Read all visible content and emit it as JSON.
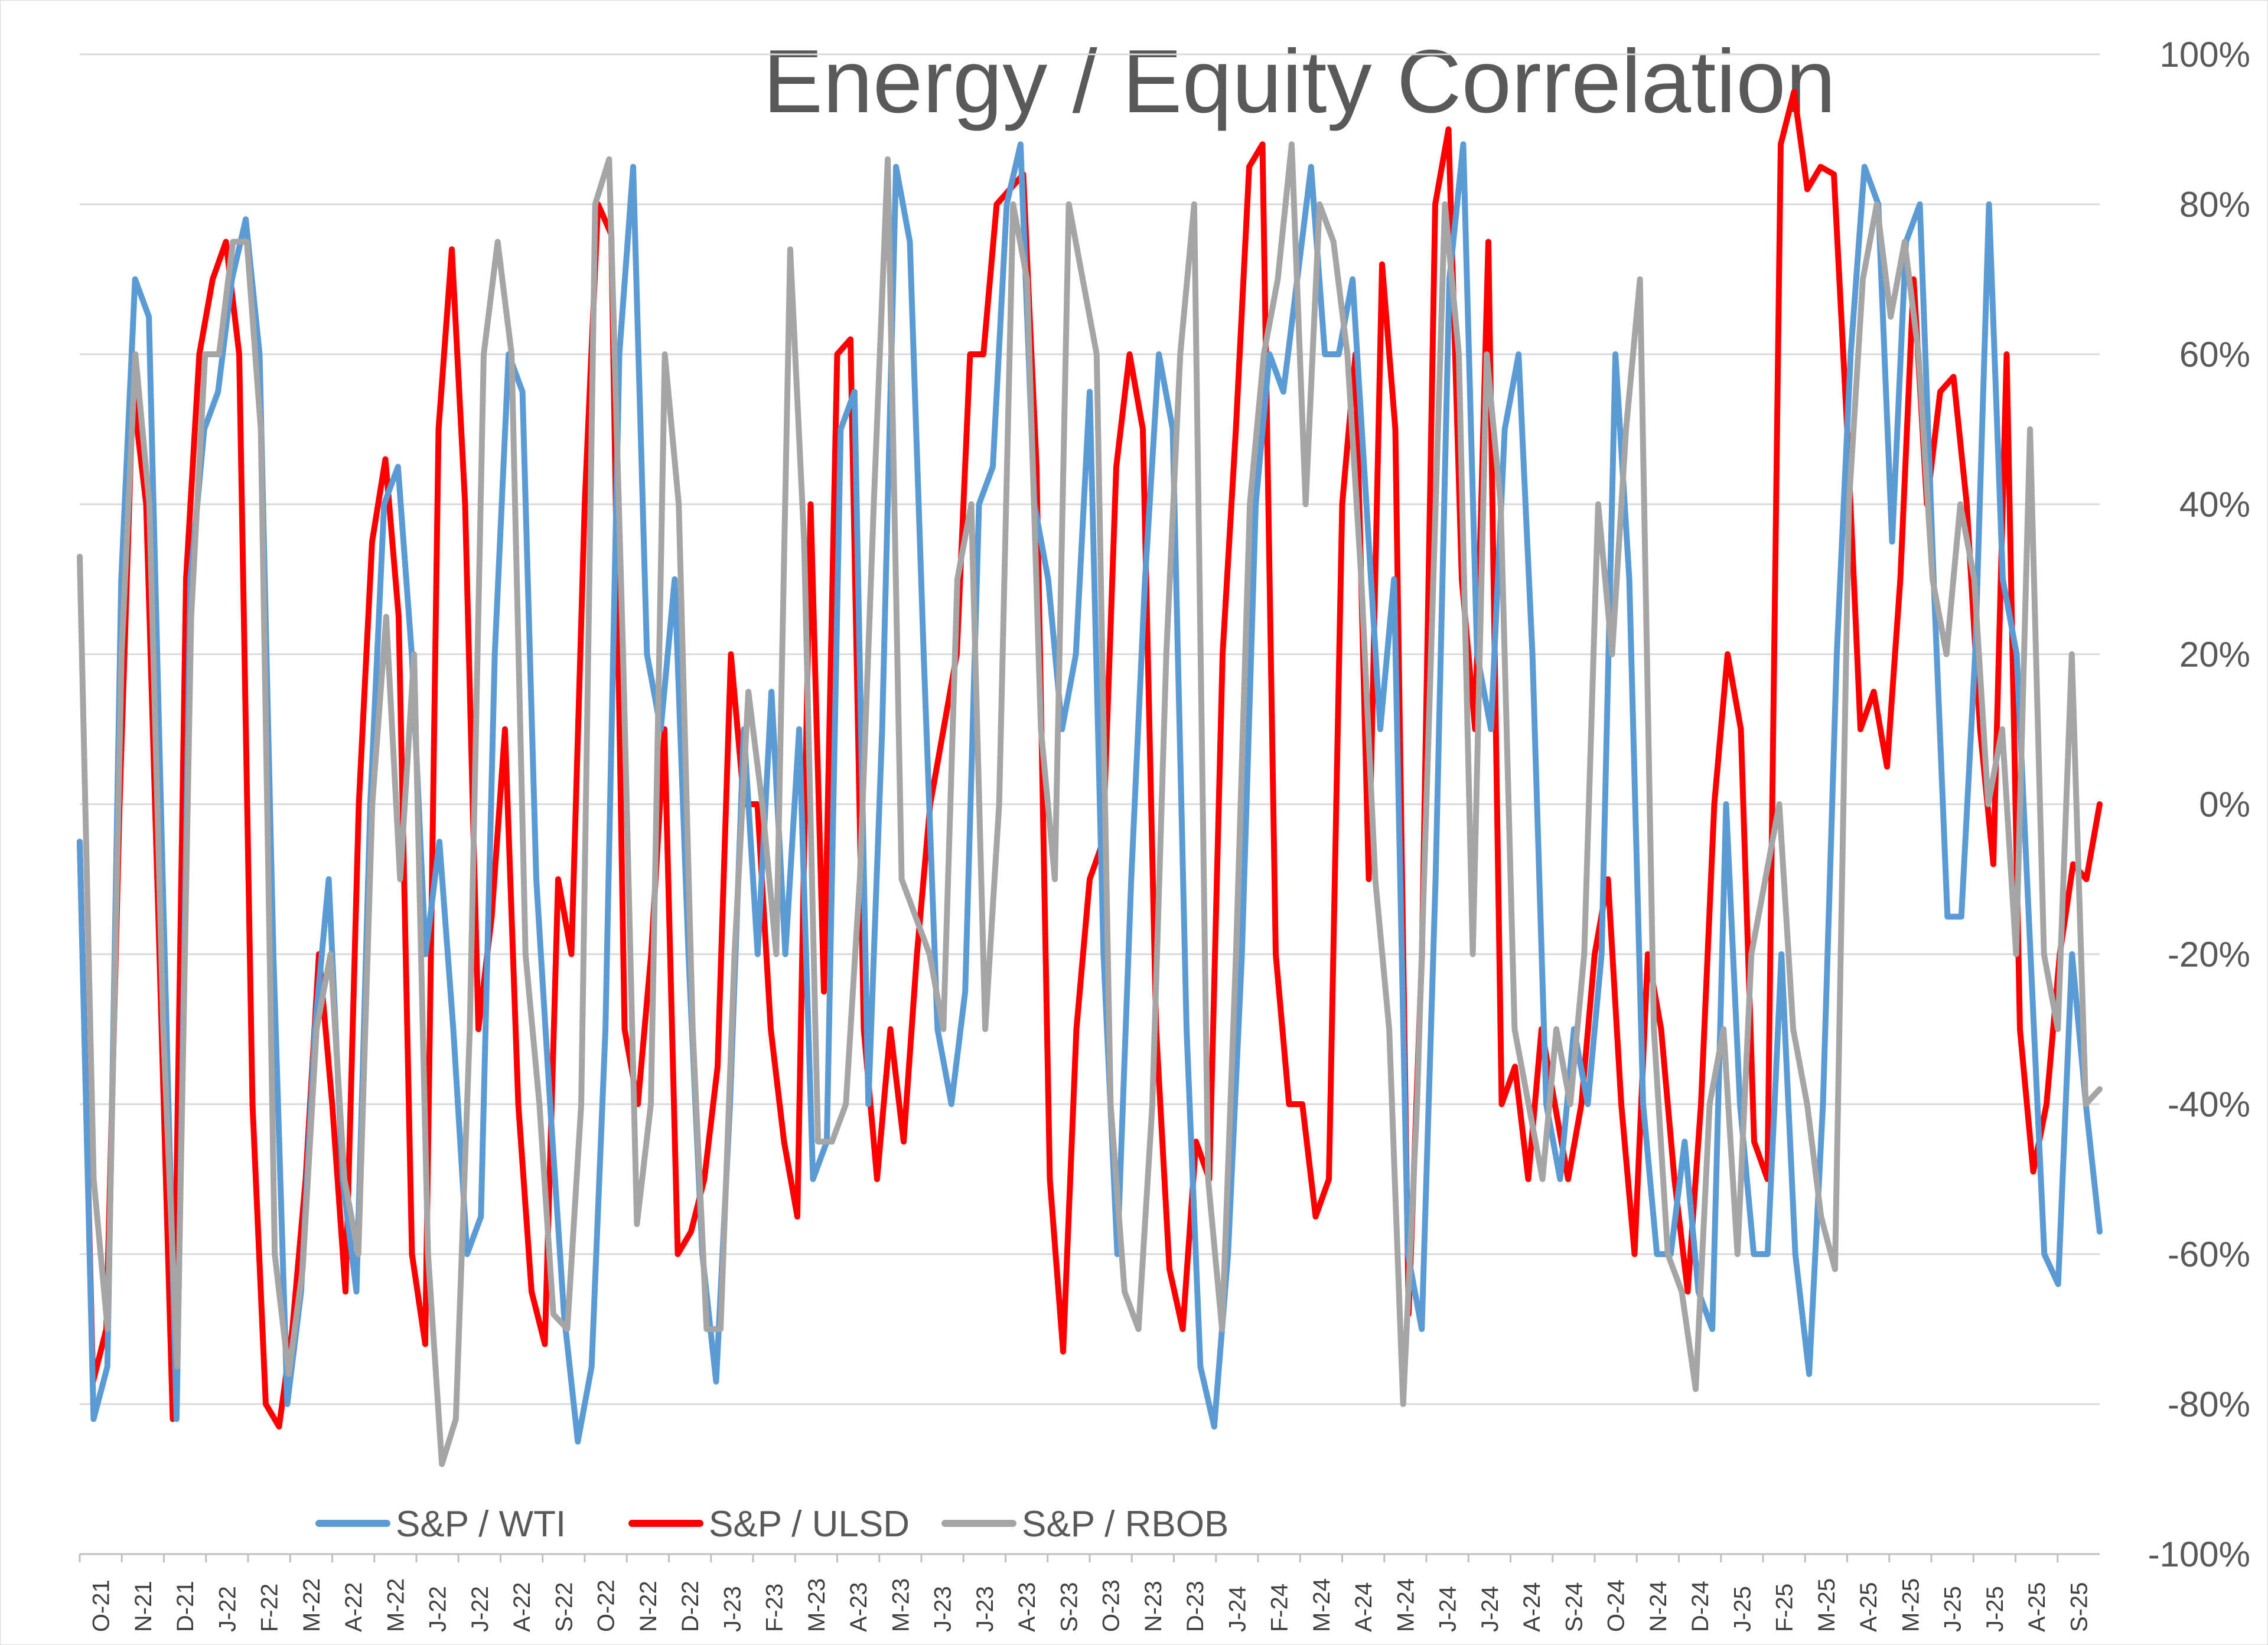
{
  "chart_data": {
    "type": "line",
    "title": "Energy / Equity Correlation",
    "xlabel": "",
    "ylabel": "",
    "ylim": [
      -100,
      100
    ],
    "y_ticks": [
      "100%",
      "80%",
      "60%",
      "40%",
      "20%",
      "0%",
      "-20%",
      "-40%",
      "-60%",
      "-80%",
      "-100%"
    ],
    "y_tick_values": [
      100,
      80,
      60,
      40,
      20,
      0,
      -20,
      -40,
      -60,
      -80,
      -100
    ],
    "y_axis_side": "right",
    "grid": true,
    "legend_position": "bottom-left",
    "x_ticks": [
      "O-21",
      "N-21",
      "D-21",
      "J-22",
      "F-22",
      "M-22",
      "A-22",
      "M-22",
      "J-22",
      "J-22",
      "A-22",
      "S-22",
      "O-22",
      "N-22",
      "D-22",
      "J-23",
      "F-23",
      "M-23",
      "A-23",
      "M-23",
      "J-23",
      "J-23",
      "A-23",
      "S-23",
      "O-23",
      "N-23",
      "D-23",
      "J-24",
      "F-24",
      "M-24",
      "A-24",
      "M-24",
      "J-24",
      "J-24",
      "A-24",
      "S-24",
      "O-24",
      "N-24",
      "D-24",
      "J-25",
      "F-25",
      "M-25",
      "A-25",
      "M-25",
      "J-25",
      "J-25",
      "A-25",
      "S-25"
    ],
    "series": [
      {
        "name": "S&P / WTI",
        "color": "#5b9bd5",
        "values": [
          -5,
          -82,
          -75,
          30,
          70,
          65,
          -10,
          -82,
          30,
          50,
          55,
          70,
          78,
          60,
          -20,
          -80,
          -65,
          -30,
          -10,
          -50,
          -65,
          0,
          40,
          45,
          20,
          -20,
          -5,
          -30,
          -60,
          -55,
          20,
          60,
          55,
          -10,
          -40,
          -68,
          -85,
          -75,
          -30,
          60,
          85,
          20,
          10,
          30,
          -20,
          -60,
          -77,
          -40,
          10,
          -20,
          15,
          -20,
          10,
          -50,
          -45,
          50,
          55,
          -40,
          10,
          85,
          75,
          20,
          -30,
          -40,
          -25,
          40,
          45,
          80,
          88,
          40,
          30,
          10,
          20,
          55,
          -20,
          -60,
          -10,
          30,
          60,
          50,
          -30,
          -75,
          -83,
          -60,
          -20,
          40,
          60,
          55,
          70,
          85,
          60,
          60,
          70,
          40,
          10,
          30,
          -60,
          -70,
          -10,
          70,
          88,
          20,
          10,
          50,
          60,
          20,
          -40,
          -50,
          -30,
          -40,
          -20,
          60,
          30,
          -40,
          -60,
          -60,
          -45,
          -65,
          -70,
          0,
          -40,
          -60,
          -60,
          -20,
          -60,
          -76,
          -40,
          20,
          60,
          85,
          80,
          35,
          75,
          80,
          30,
          -15,
          -15,
          20,
          80,
          30,
          20,
          -20,
          -60,
          -64,
          -20,
          -40,
          -57
        ]
      },
      {
        "name": "S&P / ULSD",
        "color": "#ff0000",
        "values": [
          -5,
          -77,
          -70,
          0,
          55,
          40,
          -20,
          -82,
          30,
          60,
          70,
          75,
          60,
          -40,
          -80,
          -83,
          -70,
          -50,
          -20,
          -40,
          -65,
          0,
          35,
          46,
          25,
          -60,
          -72,
          50,
          74,
          40,
          -30,
          -15,
          10,
          -40,
          -65,
          -72,
          -10,
          -20,
          40,
          80,
          76,
          -30,
          -40,
          -20,
          10,
          -60,
          -57,
          -50,
          -35,
          20,
          0,
          0,
          -30,
          -45,
          -55,
          40,
          -25,
          60,
          62,
          -30,
          -50,
          -30,
          -45,
          -20,
          0,
          10,
          20,
          60,
          60,
          80,
          82,
          84,
          45,
          -50,
          -73,
          -30,
          -10,
          -5,
          45,
          60,
          50,
          -30,
          -62,
          -70,
          -45,
          -50,
          20,
          50,
          85,
          88,
          -20,
          -40,
          -40,
          -55,
          -50,
          40,
          60,
          -10,
          72,
          50,
          -68,
          -20,
          80,
          90,
          30,
          10,
          75,
          -40,
          -35,
          -50,
          -30,
          -40,
          -50,
          -40,
          -20,
          -10,
          -40,
          -60,
          -20,
          -30,
          -50,
          -65,
          -40,
          0,
          20,
          10,
          -45,
          -50,
          88,
          95,
          82,
          85,
          84,
          50,
          10,
          15,
          5,
          30,
          70,
          40,
          55,
          57,
          40,
          10,
          -8,
          60,
          -30,
          -49,
          -40,
          -20,
          -8,
          -10,
          0
        ]
      },
      {
        "name": "S&P / RBOB",
        "color": "#a5a5a5",
        "values": [
          33,
          -50,
          -70,
          20,
          60,
          40,
          -30,
          -75,
          25,
          60,
          60,
          75,
          75,
          50,
          -60,
          -76,
          -62,
          -30,
          -20,
          -50,
          -60,
          0,
          25,
          -10,
          20,
          -60,
          -88,
          -82,
          -30,
          60,
          75,
          60,
          -20,
          -40,
          -68,
          -70,
          -40,
          80,
          86,
          20,
          -56,
          -40,
          60,
          40,
          -30,
          -70,
          -70,
          -20,
          15,
          0,
          -20,
          74,
          35,
          -45,
          -45,
          -40,
          -10,
          40,
          86,
          -10,
          -15,
          -20,
          -30,
          30,
          40,
          -30,
          0,
          80,
          70,
          10,
          -10,
          80,
          70,
          60,
          -40,
          -65,
          -70,
          -40,
          20,
          60,
          80,
          -50,
          -70,
          -20,
          40,
          60,
          70,
          88,
          40,
          80,
          75,
          60,
          30,
          -10,
          -30,
          -80,
          -40,
          20,
          80,
          60,
          -20,
          60,
          40,
          -30,
          -40,
          -50,
          -30,
          -40,
          -20,
          40,
          20,
          50,
          70,
          -30,
          -60,
          -65,
          -78,
          -40,
          -30,
          -60,
          -20,
          -10,
          0,
          -30,
          -40,
          -55,
          -62,
          40,
          70,
          80,
          65,
          75,
          60,
          30,
          20,
          40,
          30,
          0,
          10,
          -20,
          50,
          -20,
          -30,
          20,
          -40,
          -38
        ]
      }
    ]
  }
}
